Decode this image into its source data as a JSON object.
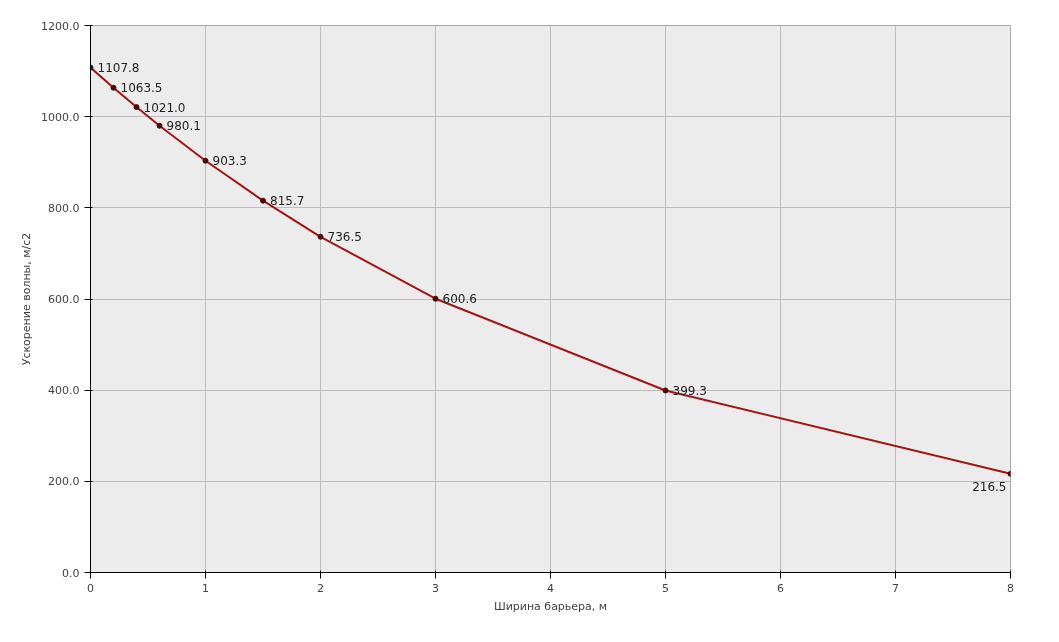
{
  "chart_data": {
    "type": "line",
    "xlabel": "Ширина барьера, м",
    "ylabel": "Ускорение волны, м/с2",
    "x": [
      0,
      0.2,
      0.4,
      0.6,
      1,
      1.5,
      2,
      3,
      5,
      8
    ],
    "series": [
      {
        "color": "#a31515",
        "values": [
          1107.8,
          1063.5,
          1021.0,
          980.1,
          903.3,
          815.7,
          736.5,
          600.6,
          399.3,
          216.5
        ],
        "value_labels": [
          "1107.8",
          "1063.5",
          "1021.0",
          "980.1",
          "903.3",
          "815.7",
          "736.5",
          "600.6",
          "399.3",
          "216.5"
        ]
      }
    ],
    "xlim": [
      0,
      8
    ],
    "xticks": [
      0,
      1,
      2,
      3,
      4,
      5,
      6,
      7,
      8
    ],
    "ylim": [
      0,
      1200
    ],
    "yticks": [
      {
        "value": 0,
        "label": "0.0"
      },
      {
        "value": 200,
        "label": "200.0"
      },
      {
        "value": 400,
        "label": "400.0"
      },
      {
        "value": 600,
        "label": "600.0"
      },
      {
        "value": 800,
        "label": "800.0"
      },
      {
        "value": 1000,
        "label": "1000.0"
      },
      {
        "value": 1200,
        "label": "1200.0"
      }
    ],
    "grid": true,
    "marker": "circle",
    "line_style": "solid"
  }
}
